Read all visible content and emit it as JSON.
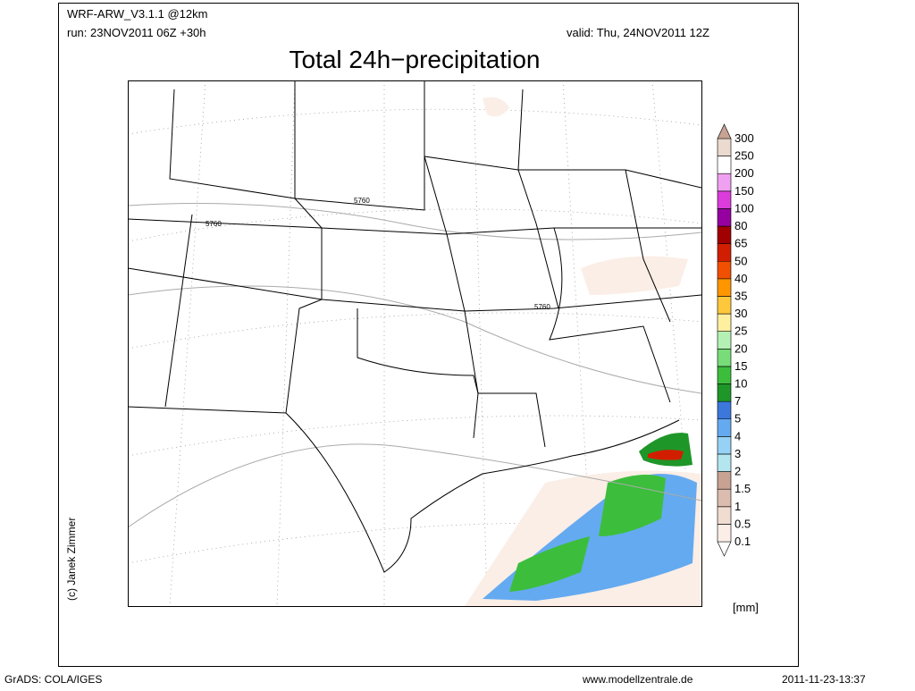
{
  "header": {
    "model": "WRF-ARW_V3.1.1 @12km",
    "run": "run: 23NOV2011 06Z +30h",
    "valid": "valid: Thu, 24NOV2011 12Z",
    "title": "Total 24h−precipitation"
  },
  "map": {
    "contour_labels": [
      "5760",
      "5760",
      "5760"
    ],
    "credit": "(c) Janek Zimmer"
  },
  "legend": {
    "labels": [
      "0.1",
      "0.5",
      "1",
      "1.5",
      "2",
      "3",
      "4",
      "5",
      "7",
      "10",
      "15",
      "20",
      "25",
      "30",
      "35",
      "40",
      "50",
      "65",
      "80",
      "100",
      "150",
      "200",
      "250",
      "300"
    ],
    "colors": [
      "#ffffff",
      "#fbeee6",
      "#f0dcd0",
      "#dcbcae",
      "#c8a292",
      "#b4e6f0",
      "#96d2f5",
      "#64aaf0",
      "#3c78dc",
      "#1e9628",
      "#3cbe3c",
      "#78dc78",
      "#b4f0b4",
      "#fff0a0",
      "#ffc83c",
      "#ff9600",
      "#f05000",
      "#d21e00",
      "#a00000",
      "#9600a0",
      "#dc3cdc",
      "#f0a0f0",
      "#ffffff",
      "#eadacf",
      "#c8a292"
    ],
    "unit": "[mm]"
  },
  "footer": {
    "software": "GrADS: COLA/IGES",
    "website": "www.modellzentrale.de",
    "timestamp": "2011-11-23-13:37"
  }
}
